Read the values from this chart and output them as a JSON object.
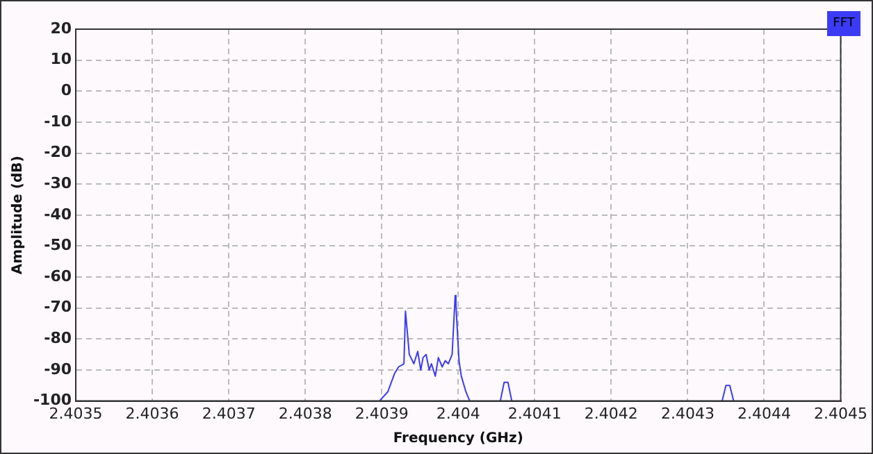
{
  "chart_data": {
    "type": "line",
    "xlabel": "Frequency (GHz)",
    "ylabel": "Amplitude (dB)",
    "series": [
      {
        "name": "FFT",
        "color": "#3b3bf5",
        "x": [
          2.403897,
          2.403908,
          2.403917,
          2.403922,
          2.403929,
          2.403931,
          2.403936,
          2.403942,
          2.403947,
          2.403951,
          2.403954,
          2.403958,
          2.403962,
          2.403965,
          2.40397,
          2.403974,
          2.403979,
          2.403983,
          2.403987,
          2.403992,
          2.403996,
          2.403997,
          2.404001,
          2.404004,
          2.40401,
          2.404015,
          2.40404,
          2.404055,
          2.40406,
          2.404065,
          2.40407,
          2.4042,
          2.404345,
          2.40435,
          2.404355,
          2.40436
        ],
        "values": [
          -100,
          -97,
          -91,
          -89,
          -88,
          -71,
          -85,
          -88,
          -84,
          -90,
          -86,
          -85,
          -90,
          -88,
          -92,
          -86,
          -89,
          -87,
          -88,
          -85,
          -66,
          -69,
          -87,
          -92,
          -97,
          -100,
          null,
          -100,
          -94,
          -94,
          -100,
          null,
          -100,
          -95,
          -95,
          -100
        ]
      }
    ],
    "xlim": [
      2.4035,
      2.4045
    ],
    "xticks": [
      2.4035,
      2.4036,
      2.4037,
      2.4038,
      2.4039,
      2.404,
      2.4041,
      2.4042,
      2.4043,
      2.4044,
      2.4045
    ],
    "ylim": [
      -100,
      20
    ],
    "yticks": [
      -100,
      -90,
      -80,
      -70,
      -60,
      -50,
      -40,
      -30,
      -20,
      -10,
      0,
      10,
      20
    ],
    "grid": true,
    "legend": "top right",
    "marker": "none",
    "line_style": "solid"
  }
}
